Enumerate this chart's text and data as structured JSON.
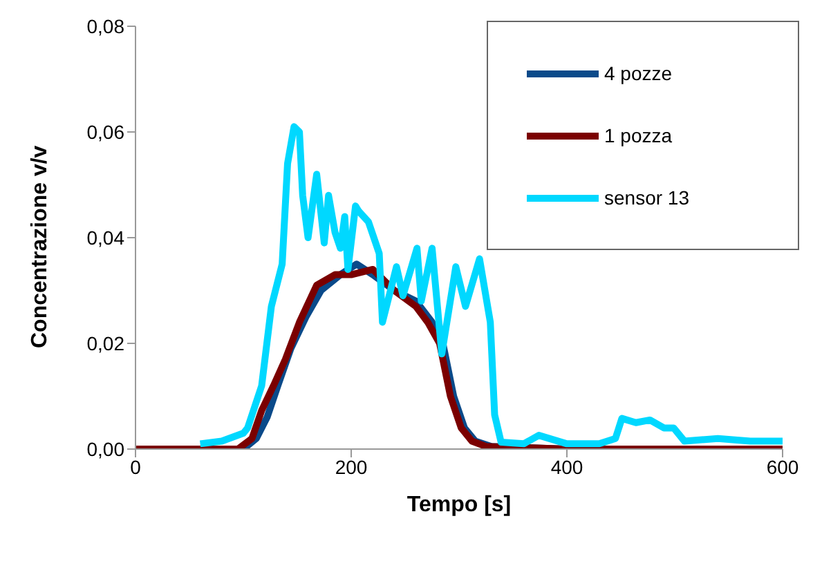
{
  "chart_data": {
    "type": "line",
    "xlabel": "Tempo [s]",
    "ylabel": "Concentrazione v/v",
    "xlim": [
      0,
      600
    ],
    "ylim": [
      0,
      0.08
    ],
    "xticks": [
      0,
      200,
      400,
      600
    ],
    "yticks": [
      {
        "value": 0,
        "label": "0,00"
      },
      {
        "value": 0.02,
        "label": "0,02"
      },
      {
        "value": 0.04,
        "label": "0,04"
      },
      {
        "value": 0.06,
        "label": "0,06"
      },
      {
        "value": 0.08,
        "label": "0,08"
      }
    ],
    "grid": false,
    "legend": "top right",
    "marker": "none",
    "line_style": "solid",
    "series": [
      {
        "name": "4 pozze",
        "color": "#0a4a8a",
        "x": [
          0,
          100,
          112,
          122,
          132,
          144,
          158,
          172,
          190,
          205,
          220,
          240,
          260,
          275,
          285,
          295,
          305,
          315,
          330,
          400,
          600
        ],
        "values": [
          0,
          0,
          0.002,
          0.006,
          0.012,
          0.019,
          0.025,
          0.03,
          0.033,
          0.035,
          0.033,
          0.03,
          0.028,
          0.024,
          0.02,
          0.01,
          0.004,
          0.0015,
          0.0005,
          0,
          0
        ]
      },
      {
        "name": "1 pozza",
        "color": "#7b0000",
        "x": [
          0,
          95,
          108,
          117,
          128,
          139,
          152,
          168,
          185,
          200,
          220,
          240,
          260,
          271,
          282,
          292,
          302,
          312,
          325,
          400,
          600
        ],
        "values": [
          0,
          0,
          0.002,
          0.0073,
          0.012,
          0.017,
          0.024,
          0.031,
          0.033,
          0.033,
          0.034,
          0.03,
          0.027,
          0.024,
          0.02,
          0.01,
          0.004,
          0.0015,
          0.0005,
          0,
          0
        ]
      },
      {
        "name": "sensor 13",
        "color": "#00d8ff",
        "x": [
          60,
          80,
          100,
          104,
          117,
          126,
          136,
          141,
          147,
          152,
          155,
          160,
          168,
          175,
          179,
          185,
          190,
          194,
          197,
          204,
          207,
          216,
          226,
          229,
          242,
          248,
          261,
          265,
          275,
          284,
          297,
          306,
          319,
          329,
          333,
          339,
          360,
          374,
          400,
          430,
          445,
          451,
          464,
          477,
          490,
          499,
          509,
          540,
          570,
          600
        ],
        "values": [
          0.001,
          0.0015,
          0.003,
          0.004,
          0.012,
          0.027,
          0.035,
          0.054,
          0.061,
          0.06,
          0.048,
          0.04,
          0.052,
          0.039,
          0.048,
          0.041,
          0.038,
          0.044,
          0.034,
          0.046,
          0.045,
          0.043,
          0.037,
          0.024,
          0.0345,
          0.029,
          0.038,
          0.028,
          0.038,
          0.018,
          0.0345,
          0.027,
          0.036,
          0.024,
          0.0065,
          0.0013,
          0.001,
          0.0026,
          0.001,
          0.001,
          0.002,
          0.0058,
          0.005,
          0.0055,
          0.004,
          0.004,
          0.0015,
          0.002,
          0.0015,
          0.0015
        ]
      }
    ]
  }
}
